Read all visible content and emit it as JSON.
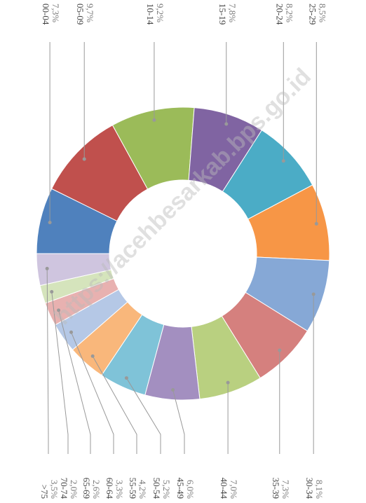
{
  "chart_data": {
    "type": "donut",
    "categories": [
      "00-04",
      "05-09",
      "10-14",
      "15-19",
      "20-24",
      "25-29",
      "30-34",
      "35-39",
      "40-44",
      "45-49",
      "50-54",
      "55-59",
      "60-64",
      "65-69",
      "70-74",
      ">75"
    ],
    "values": [
      7.3,
      9.7,
      9.2,
      7.8,
      8.2,
      8.5,
      8.1,
      7.3,
      7.0,
      6.0,
      5.2,
      4.2,
      3.3,
      2.6,
      2.0,
      3.5
    ],
    "value_labels": [
      "7,3%",
      "9,7%",
      "9,2%",
      "7,8%",
      "8,2%",
      "8,5%",
      "8,1%",
      "7,3%",
      "7,0%",
      "6,0%",
      "5,2%",
      "4,2%",
      "3,3%",
      "2,6%",
      "2,0%",
      "3,5%"
    ],
    "colors": [
      "#4f81bd",
      "#c0504d",
      "#9bbb59",
      "#8064a2",
      "#4bacc6",
      "#f79646",
      "#86a8d6",
      "#d5807e",
      "#b9d080",
      "#a38fc0",
      "#7fc3d8",
      "#f9b77b",
      "#b5c8e6",
      "#e8b1b0",
      "#d5e4bc",
      "#cfc5df"
    ],
    "watermark": "https://acehbesarkab.bps.go.id"
  }
}
